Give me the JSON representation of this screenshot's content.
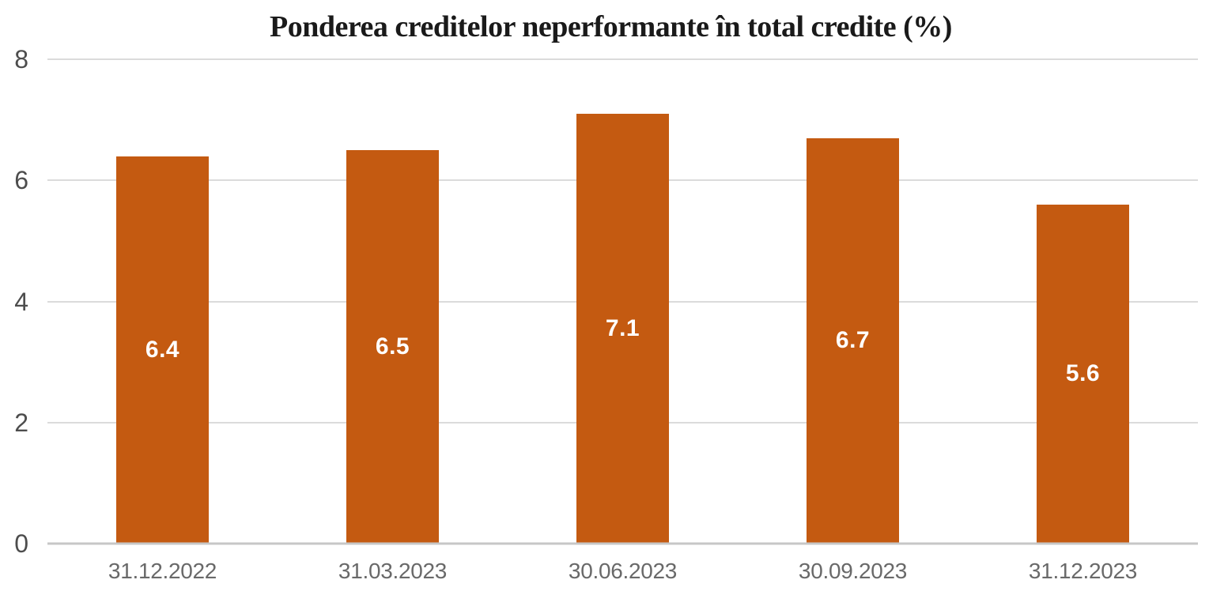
{
  "chart_data": {
    "type": "bar",
    "title": "Ponderea creditelor neperformante în total credite (%)",
    "categories": [
      "31.12.2022",
      "31.03.2023",
      "30.06.2023",
      "30.09.2023",
      "31.12.2023"
    ],
    "values": [
      6.4,
      6.5,
      7.1,
      6.7,
      5.6
    ],
    "data_labels": [
      "6.4",
      "6.5",
      "7.1",
      "6.7",
      "5.6"
    ],
    "xlabel": "",
    "ylabel": "",
    "ylim": [
      0,
      8
    ],
    "yticks": [
      0,
      2,
      4,
      6,
      8
    ],
    "grid": true,
    "legend_position": "none",
    "colors": {
      "bar": "#C45A11",
      "bar_value_label": "#FFFFFF",
      "title_text": "#1A1A1A",
      "gridline": "#DBDBDB",
      "axis_line": "#C7C7C7",
      "y_tick_text": "#4D4D4D",
      "x_tick_text": "#696969",
      "background": "#FFFFFF"
    }
  }
}
